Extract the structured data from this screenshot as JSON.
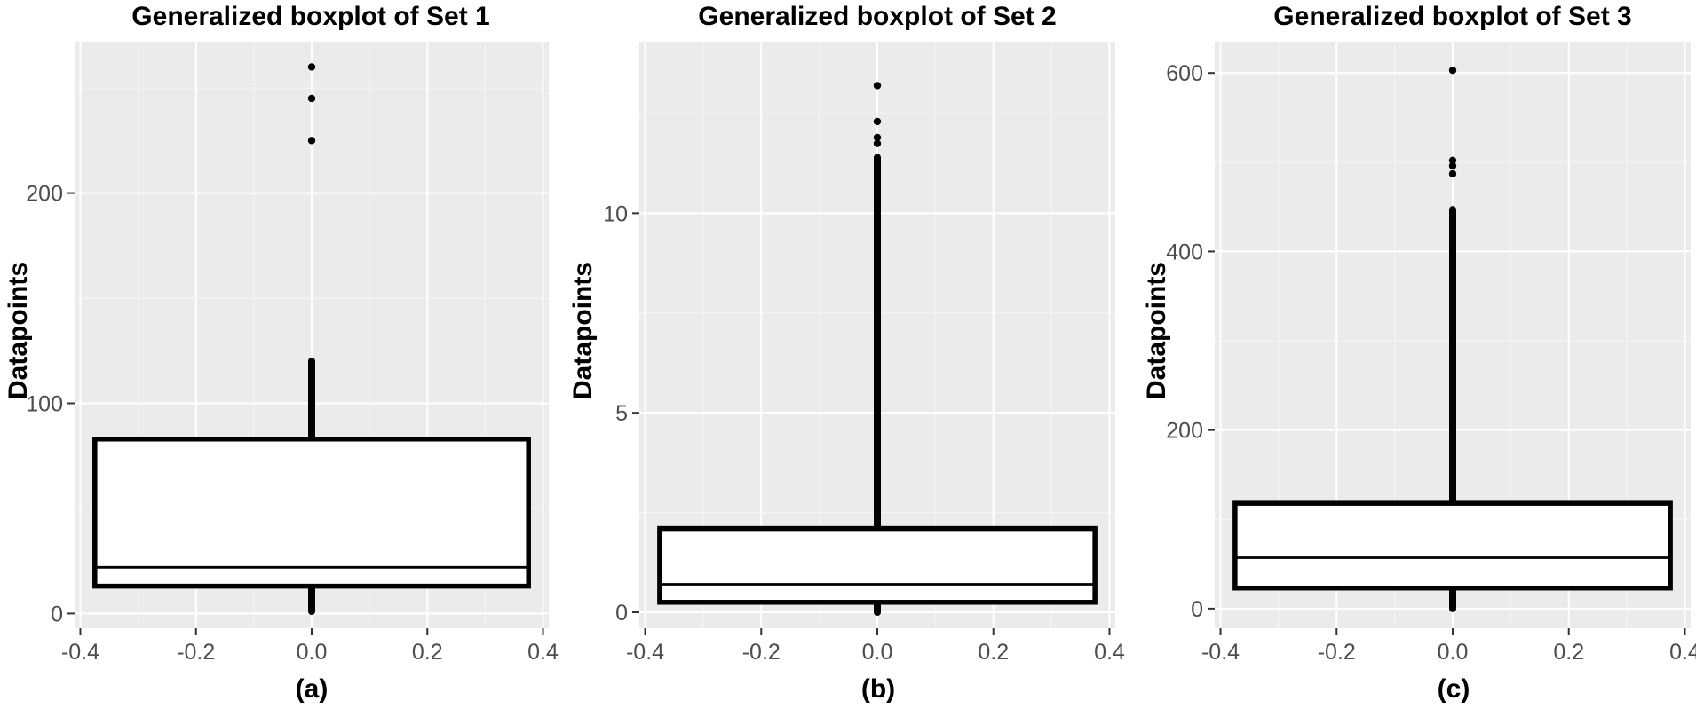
{
  "chart_data": [
    {
      "type": "boxplot",
      "title": "Generalized boxplot of Set 1",
      "ylabel": "Datapoints",
      "xlabel": "",
      "caption": "(a)",
      "xlim": [
        -0.41,
        0.41
      ],
      "ylim": [
        -7,
        272
      ],
      "xticks": [
        -0.4,
        -0.2,
        0.0,
        0.2,
        0.4
      ],
      "xtick_labels": [
        "-0.4",
        "-0.2",
        "0.0",
        "0.2",
        "0.4"
      ],
      "yticks": [
        0,
        100,
        200
      ],
      "ytick_labels": [
        "0",
        "100",
        "200"
      ],
      "box": {
        "x_center": 0,
        "x_left": -0.375,
        "x_right": 0.375,
        "q1": 13,
        "median": 22,
        "q3": 83,
        "whisker_low": 1,
        "whisker_high": 120
      },
      "outlier_points": [
        260,
        245,
        225
      ],
      "grid": true
    },
    {
      "type": "boxplot",
      "title": "Generalized boxplot of Set 2",
      "ylabel": "Datapoints",
      "xlabel": "",
      "caption": "(b)",
      "xlim": [
        -0.41,
        0.41
      ],
      "ylim": [
        -0.4,
        14.3
      ],
      "xticks": [
        -0.4,
        -0.2,
        0.0,
        0.2,
        0.4
      ],
      "xtick_labels": [
        "-0.4",
        "-0.2",
        "0.0",
        "0.2",
        "0.4"
      ],
      "yticks": [
        0,
        5,
        10
      ],
      "ytick_labels": [
        "0",
        "5",
        "10"
      ],
      "box": {
        "x_center": 0,
        "x_left": -0.375,
        "x_right": 0.375,
        "q1": 0.25,
        "median": 0.7,
        "q3": 2.1,
        "whisker_low": 0,
        "whisker_high": 11.4
      },
      "outlier_points": [
        13.2,
        12.3,
        11.9,
        11.75
      ],
      "grid": true
    },
    {
      "type": "boxplot",
      "title": "Generalized boxplot of Set 3",
      "ylabel": "Datapoints",
      "xlabel": "",
      "caption": "(c)",
      "xlim": [
        -0.41,
        0.41
      ],
      "ylim": [
        -22,
        635
      ],
      "xticks": [
        -0.4,
        -0.2,
        0.0,
        0.2,
        0.4
      ],
      "xtick_labels": [
        "-0.4",
        "-0.2",
        "0.0",
        "0.2",
        "0.4"
      ],
      "yticks": [
        0,
        200,
        400,
        600
      ],
      "ytick_labels": [
        "0",
        "200",
        "400",
        "600"
      ],
      "box": {
        "x_center": 0,
        "x_left": -0.375,
        "x_right": 0.375,
        "q1": 23,
        "median": 57,
        "q3": 118,
        "whisker_low": 0,
        "whisker_high": 447
      },
      "outlier_points": [
        603,
        502,
        496,
        487
      ],
      "grid": true
    }
  ],
  "colors": {
    "panel_background": "#ebebeb",
    "grid_major": "#ffffff",
    "grid_minor": "#f5f5f5",
    "box_fill": "#ffffff",
    "box_stroke": "#000000",
    "tick_text": "#4d4d4d",
    "tick_mark": "#333333"
  }
}
